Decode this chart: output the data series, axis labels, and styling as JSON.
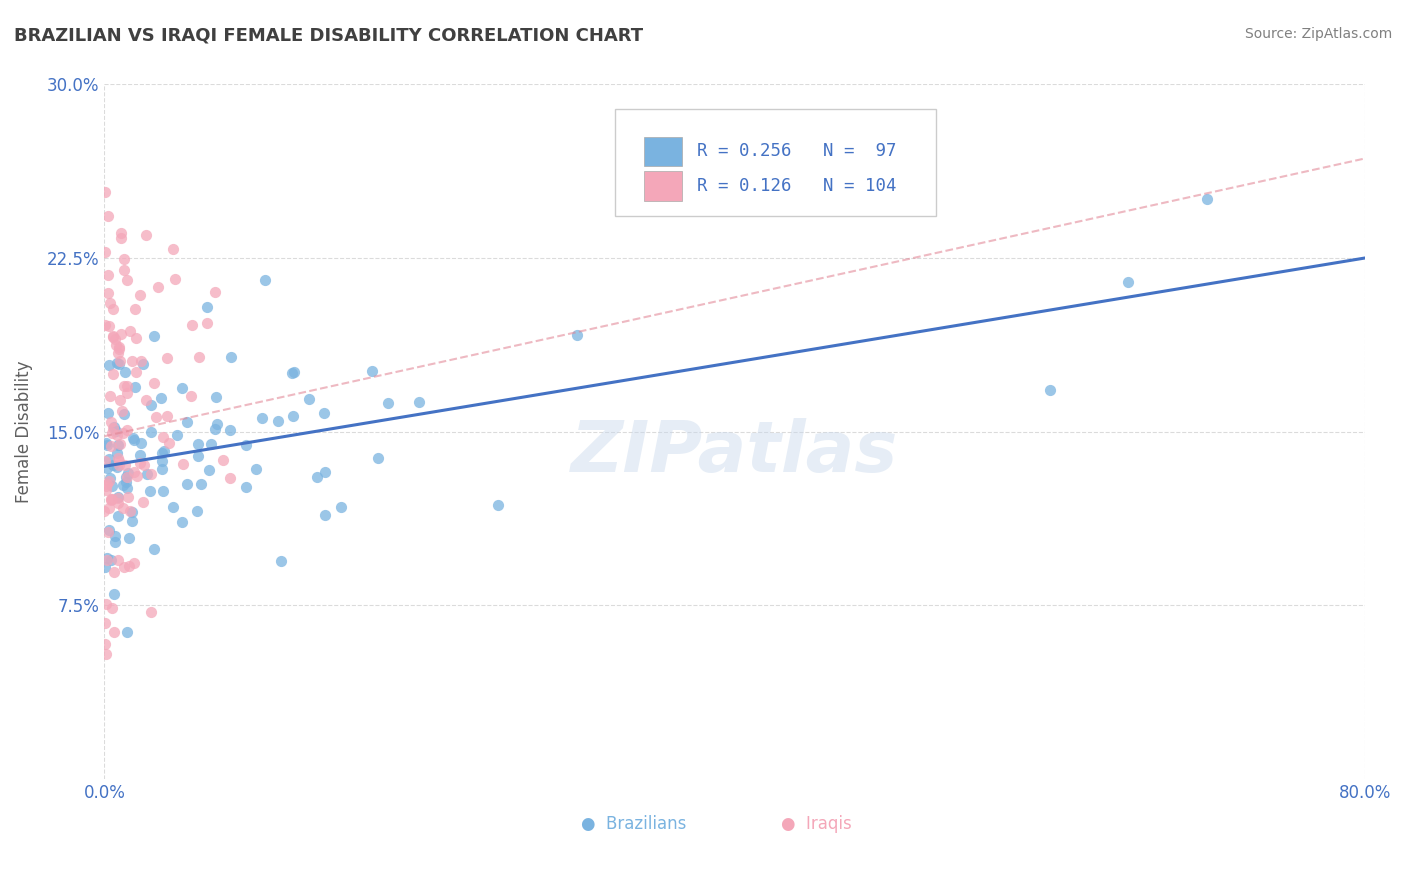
{
  "title": "BRAZILIAN VS IRAQI FEMALE DISABILITY CORRELATION CHART",
  "source": "Source: ZipAtlas.com",
  "ylabel": "Female Disability",
  "xlim": [
    0.0,
    0.8
  ],
  "ylim": [
    0.0,
    0.3
  ],
  "watermark": "ZIPatlas",
  "legend_r1": "R = 0.256",
  "legend_n1": "N =  97",
  "legend_r2": "R = 0.126",
  "legend_n2": "N = 104",
  "color_brazilian": "#7ab3e0",
  "color_iraqi": "#f4a7b9",
  "color_line_brazilian": "#4472c4",
  "color_line_iraqi": "#e08090",
  "background_color": "#ffffff",
  "grid_color": "#cccccc",
  "title_color": "#404040",
  "title_fontsize": 13,
  "axis_label_color": "#606060",
  "tick_color": "#4472c4",
  "source_color": "#808080",
  "n_braz": 97,
  "n_iraqi": 104,
  "braz_line_x": [
    0.0,
    0.8
  ],
  "braz_line_y": [
    0.135,
    0.225
  ],
  "iraqi_line_x": [
    0.0,
    0.8
  ],
  "iraqi_line_y": [
    0.148,
    0.268
  ]
}
